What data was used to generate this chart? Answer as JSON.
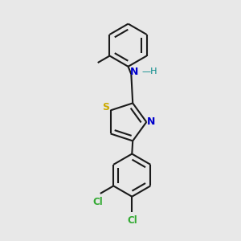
{
  "bg_color": "#e8e8e8",
  "bond_color": "#1a1a1a",
  "S_color": "#ccaa00",
  "N_color": "#0000cc",
  "Cl_color": "#33aa33",
  "lw": 1.5,
  "figsize": [
    3.0,
    3.0
  ],
  "dpi": 100,
  "xlim": [
    -1.2,
    1.2
  ],
  "ylim": [
    -1.55,
    1.55
  ]
}
